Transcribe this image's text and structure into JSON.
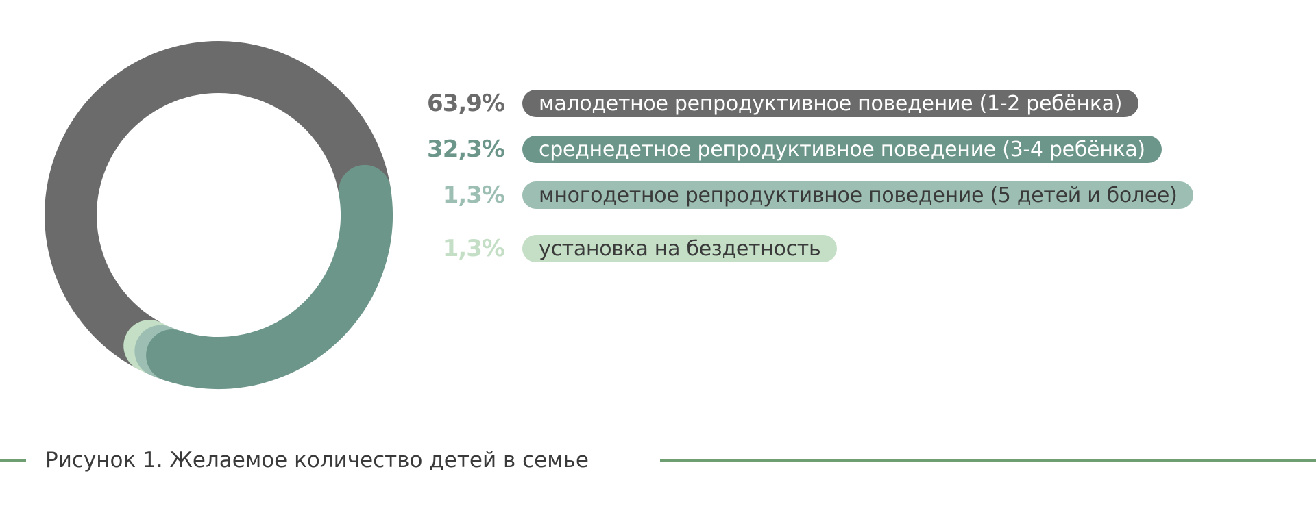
{
  "chart_data": {
    "type": "pie",
    "style": "donut",
    "title": "",
    "legend_position": "right",
    "slices": [
      {
        "label": "малодетное репродуктивное поведение (1-2 ребёнка)",
        "value": 63.9,
        "value_label": "63,9%",
        "color": "#6b6b6b",
        "pct_color": "#6b6b6b",
        "text_color": "#ffffff"
      },
      {
        "label": "среднедетное репродуктивное поведение (3-4 ребёнка)",
        "value": 32.3,
        "value_label": "32,3%",
        "color": "#6d968a",
        "pct_color": "#6d968a",
        "text_color": "#ffffff"
      },
      {
        "label": "многодетное репродуктивное поведение (5 детей и более)",
        "value": 1.3,
        "value_label": "1,3%",
        "color": "#9dbfb3",
        "pct_color": "#9dbfb3",
        "text_color": "#3a3a3a"
      },
      {
        "label": "установка на бездетность",
        "value": 1.3,
        "value_label": "1,3%",
        "color": "#c4dfc6",
        "pct_color": "#c4dfc6",
        "text_color": "#3a3a3a"
      }
    ]
  },
  "caption": {
    "text": "Рисунок 1. Желаемое количество детей в семье",
    "line_color": "#6e9e72"
  }
}
